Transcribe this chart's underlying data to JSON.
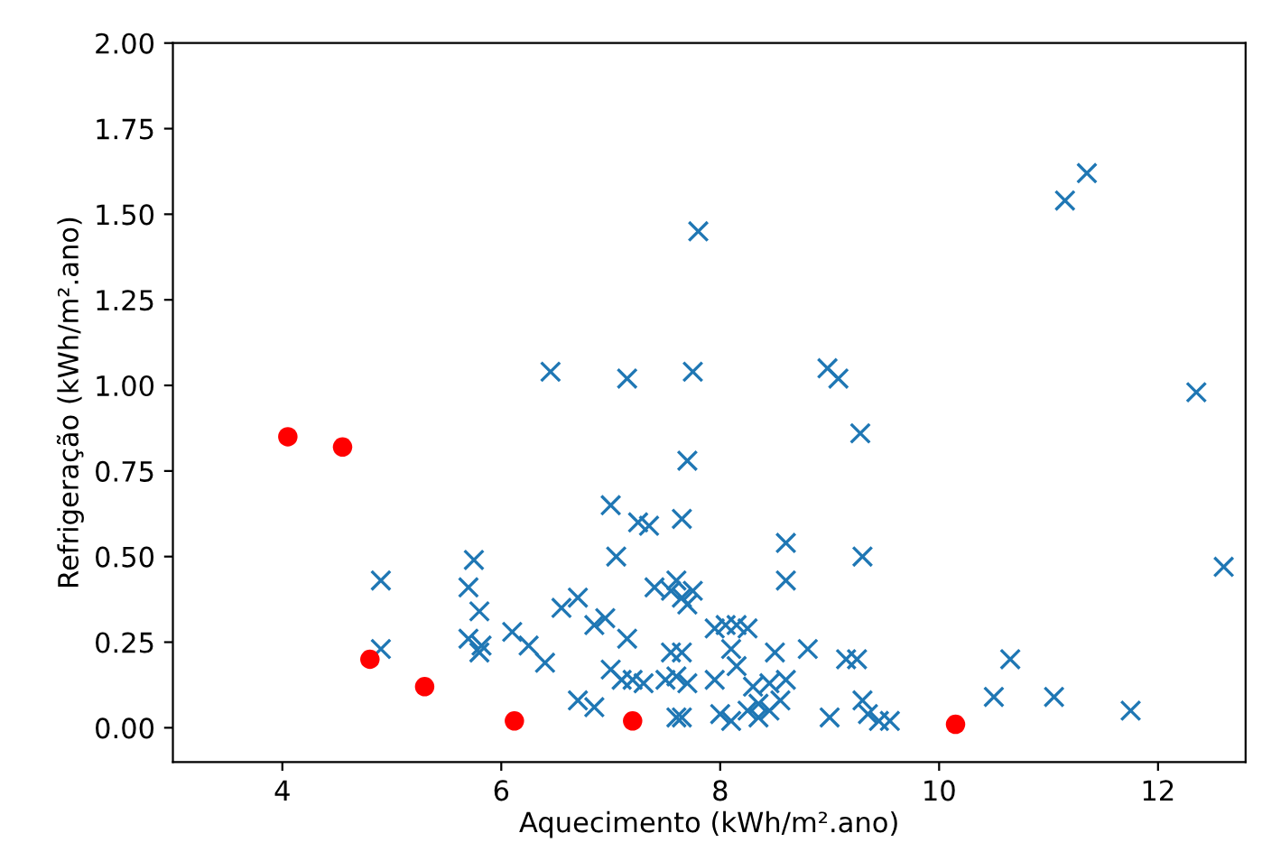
{
  "chart_data": {
    "type": "scatter",
    "xlabel": "Aquecimento (kWh/m².ano)",
    "ylabel": "Refrigeração (kWh/m².ano)",
    "xlim": [
      3,
      12.8
    ],
    "ylim": [
      -0.1,
      2.0
    ],
    "xticks": [
      4,
      6,
      8,
      10,
      12
    ],
    "yticks": [
      {
        "value": 0,
        "label": "0.00"
      },
      {
        "value": 0.25,
        "label": "0.25"
      },
      {
        "value": 0.5,
        "label": "0.50"
      },
      {
        "value": 0.75,
        "label": "0.75"
      },
      {
        "value": 1.0,
        "label": "1.00"
      },
      {
        "value": 1.25,
        "label": "1.25"
      },
      {
        "value": 1.5,
        "label": "1.50"
      },
      {
        "value": 1.75,
        "label": "1.75"
      },
      {
        "value": 2.0,
        "label": "2.00"
      }
    ],
    "grid": false,
    "legend": false,
    "series": [
      {
        "color": "#1f77b4",
        "marker": "cross",
        "x": [
          6.45,
          7.15,
          7.75,
          7.8,
          8.98,
          9.08,
          9.28,
          11.15,
          11.35,
          12.35,
          12.6,
          7.7,
          4.9,
          4.9,
          5.75,
          5.7,
          5.8,
          5.7,
          5.8,
          5.82,
          6.1,
          6.25,
          6.4,
          6.55,
          6.7,
          6.85,
          6.7,
          6.85,
          7.0,
          7.05,
          7.25,
          7.35,
          7.15,
          6.95,
          7.0,
          7.1,
          7.2,
          7.3,
          7.4,
          7.55,
          7.6,
          7.65,
          7.7,
          7.65,
          7.75,
          7.5,
          7.6,
          7.55,
          7.65,
          7.7,
          7.6,
          7.65,
          7.95,
          8.05,
          8.15,
          8.25,
          7.95,
          8.1,
          8.15,
          8.3,
          8.45,
          8.35,
          8.0,
          8.1,
          8.25,
          8.35,
          8.5,
          8.6,
          8.6,
          8.45,
          8.6,
          8.8,
          9.0,
          9.15,
          9.25,
          9.3,
          9.3,
          9.35,
          9.45,
          9.55,
          10.5,
          10.65,
          11.05,
          11.75,
          8.55
        ],
        "values": [
          1.04,
          1.02,
          1.04,
          1.45,
          1.05,
          1.02,
          0.86,
          1.54,
          1.62,
          0.98,
          0.47,
          0.78,
          0.43,
          0.23,
          0.49,
          0.41,
          0.34,
          0.26,
          0.22,
          0.24,
          0.28,
          0.24,
          0.19,
          0.35,
          0.38,
          0.3,
          0.08,
          0.06,
          0.65,
          0.5,
          0.6,
          0.59,
          0.26,
          0.32,
          0.17,
          0.14,
          0.14,
          0.13,
          0.41,
          0.4,
          0.43,
          0.38,
          0.36,
          0.61,
          0.4,
          0.14,
          0.15,
          0.22,
          0.22,
          0.13,
          0.03,
          0.03,
          0.29,
          0.3,
          0.3,
          0.29,
          0.14,
          0.23,
          0.18,
          0.12,
          0.13,
          0.07,
          0.04,
          0.02,
          0.05,
          0.03,
          0.22,
          0.54,
          0.43,
          0.05,
          0.14,
          0.23,
          0.03,
          0.2,
          0.2,
          0.5,
          0.08,
          0.04,
          0.02,
          0.02,
          0.09,
          0.2,
          0.09,
          0.05,
          0.08
        ]
      },
      {
        "color": "#ff0000",
        "marker": "circle",
        "x": [
          4.05,
          4.55,
          4.8,
          5.3,
          6.12,
          7.2,
          10.15
        ],
        "values": [
          0.85,
          0.82,
          0.2,
          0.12,
          0.02,
          0.02,
          0.01
        ]
      }
    ]
  }
}
